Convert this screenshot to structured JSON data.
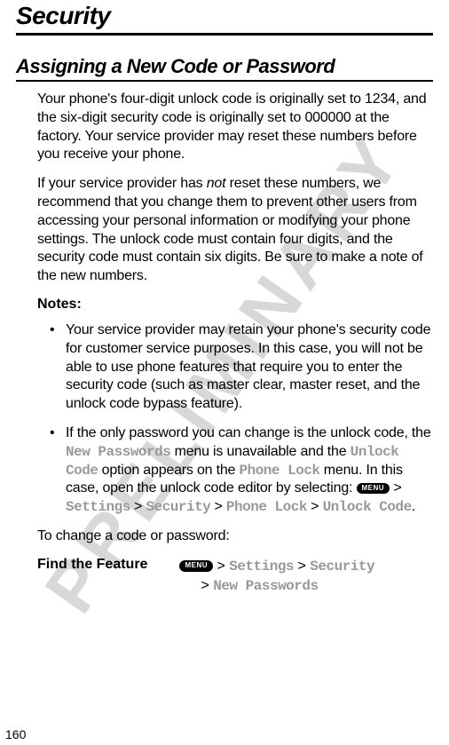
{
  "watermark": "PRELIMINARY",
  "title": "Security",
  "subtitle": "Assigning a New Code or Password",
  "para1": "Your phone's four-digit unlock code is originally set to 1234, and the six-digit security code is originally set to 000000 at the factory. Your service provider may reset these numbers before you receive your phone.",
  "para2_pre": "If your service provider has ",
  "para2_em": "not",
  "para2_post": " reset these numbers, we recommend that you change them to prevent other users from accessing your personal information or modifying your phone settings. The unlock code must contain four digits, and the security code must contain six digits. Be sure to make a note of the new numbers.",
  "notes_label": "Notes: ",
  "bullet1": "Your service provider may retain your phone's security code for customer service purposes. In this case, you will not be able to use phone features that require you to enter the security code (such as master clear, master reset, and the unlock code bypass feature).",
  "bullet2_a": "If the only password you can change is the unlock code, the ",
  "bullet2_b": "New Passwords",
  "bullet2_c": " menu is unavailable and the ",
  "bullet2_d": "Unlock Code",
  "bullet2_e": " option appears on the ",
  "bullet2_f": "Phone Lock",
  "bullet2_g": " menu. In this case, open the unlock code editor by selecting: ",
  "bullet2_h": "Settings",
  "bullet2_i": "Security",
  "bullet2_j": "Phone Lock",
  "bullet2_k": "Unlock Code",
  "menu_badge": "MENU",
  "gt": " > ",
  "period": ".",
  "para3": "To change a code or password:",
  "find_feature_label": "Find the Feature",
  "ff_settings": "Settings",
  "ff_security": "Security",
  "ff_newpass": "New Passwords",
  "page_num": "160",
  "colors": {
    "mono_gray": "#999999",
    "watermark_gray": "#d8d8d8",
    "text": "#000000",
    "bg": "#ffffff"
  }
}
